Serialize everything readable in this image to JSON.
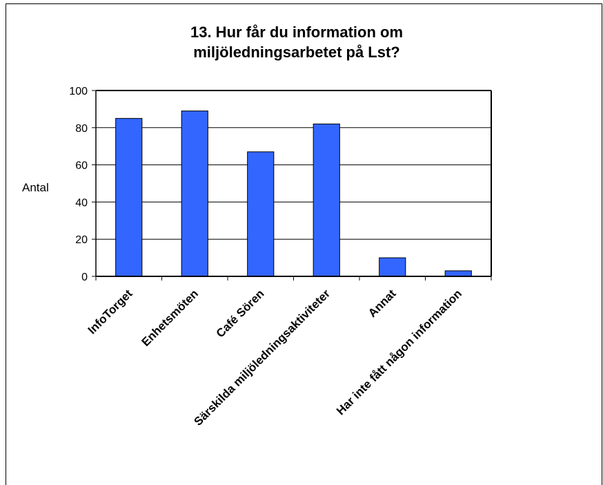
{
  "chart_data": {
    "type": "bar",
    "title": "13. Hur får du information om miljöledningsarbetet på Lst?",
    "title_lines": [
      "13. Hur får du information om",
      "miljöledningsarbetet på Lst?"
    ],
    "ylabel": "Antal",
    "xlabel": "",
    "categories": [
      "InfoTorget",
      "Enhetsmöten",
      "Café Sören",
      "Särskilda miljöledningsaktiviteter",
      "Annat",
      "Har inte fått någon information"
    ],
    "values": [
      85,
      89,
      67,
      82,
      10,
      3
    ],
    "ylim": [
      0,
      100
    ],
    "yticks": [
      0,
      20,
      40,
      60,
      80,
      100
    ],
    "grid": true,
    "legend": "none",
    "bar_color": "#3366ff"
  }
}
